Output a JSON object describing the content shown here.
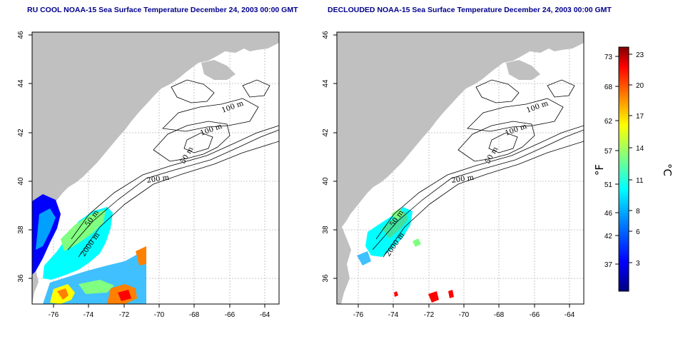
{
  "titles": {
    "left": "RU COOL NOAA-15 Sea Surface Temperature December 24, 2003 00:00 GMT",
    "right": "DECLOUDED NOAA-15 Sea Surface Temperature December 24, 2003 00:00 GMT"
  },
  "axes": {
    "lon_ticks": [
      "-76",
      "-74",
      "-72",
      "-70",
      "-68",
      "-66",
      "-64"
    ],
    "lat_ticks": [
      "36",
      "38",
      "40",
      "42",
      "44",
      "46"
    ]
  },
  "contour_labels": [
    "100 m",
    "100 m",
    "50 m",
    "200 m",
    "50 m",
    "2000 m"
  ],
  "colorbar": {
    "fahrenheit_ticks": [
      "73",
      "68",
      "62",
      "57",
      "51",
      "46",
      "42",
      "37"
    ],
    "celsius_ticks": [
      "23",
      "20",
      "17",
      "14",
      "11",
      "8",
      "6",
      "3"
    ],
    "fahrenheit_unit": "°F",
    "celsius_unit": "°C"
  },
  "colors": {
    "land": "#c0c0c0",
    "title": "#00008b",
    "scale": [
      "#000080",
      "#0000ff",
      "#0080ff",
      "#00ffff",
      "#80ff80",
      "#ffff00",
      "#ff8000",
      "#ff0000",
      "#800000"
    ]
  }
}
